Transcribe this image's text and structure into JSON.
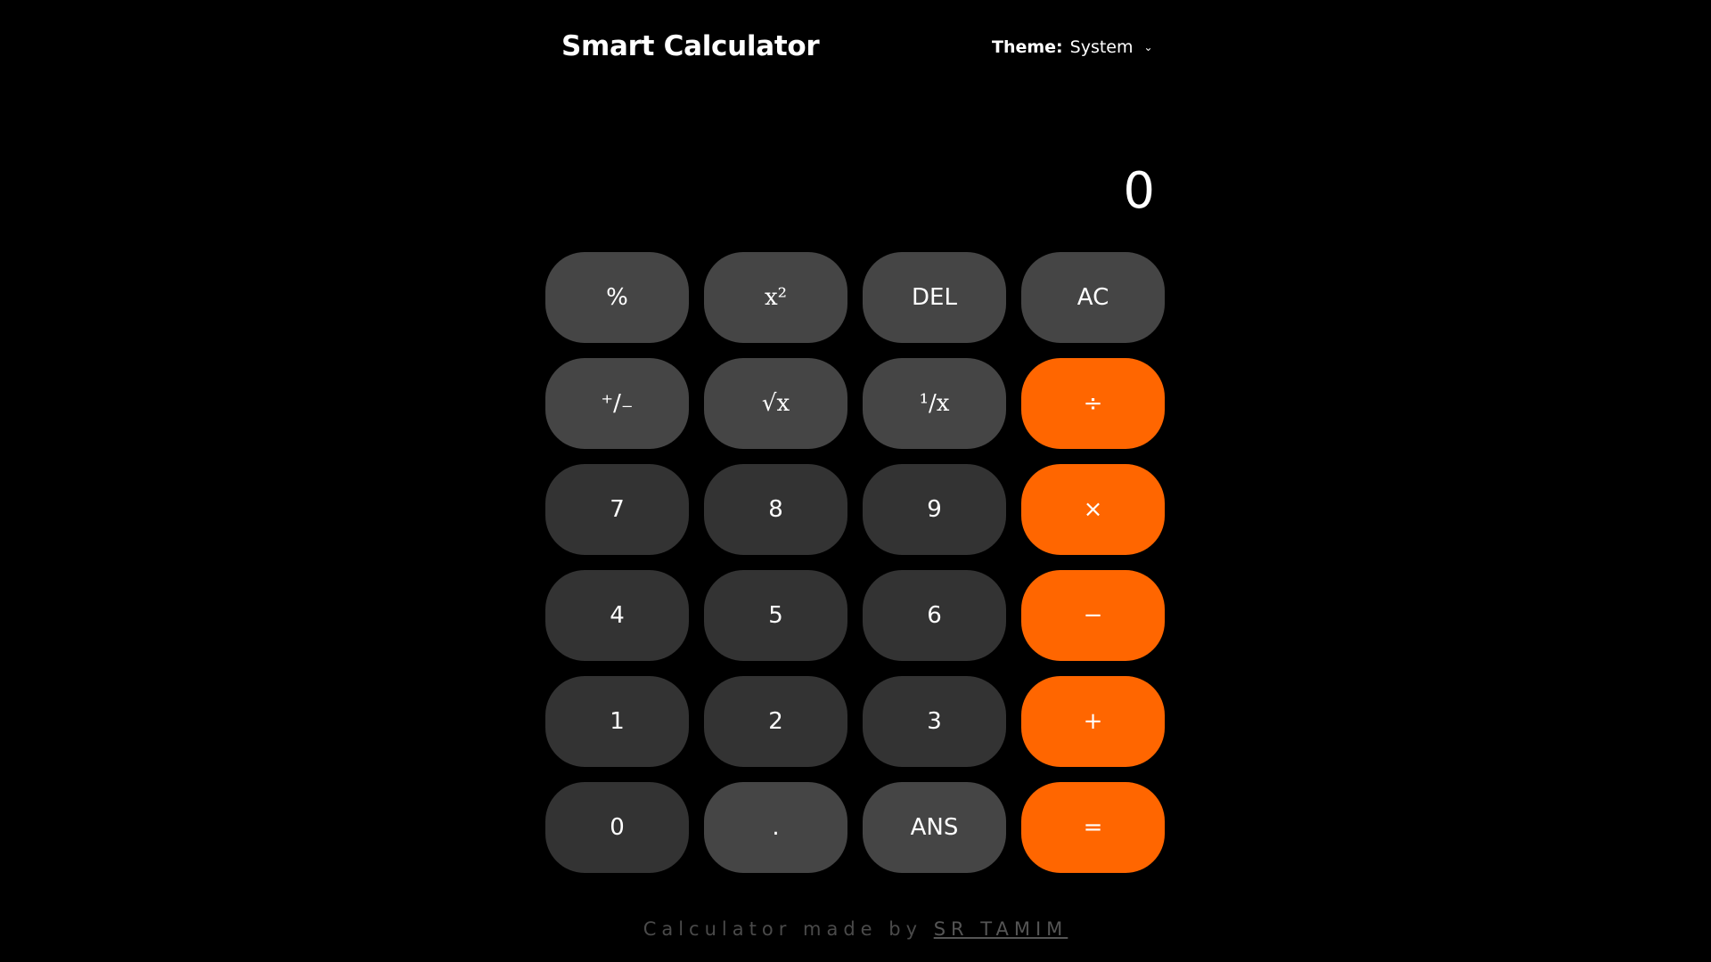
{
  "header": {
    "title": "Smart Calculator",
    "theme_label": "Theme:",
    "theme_value": "System"
  },
  "display": {
    "value": "0"
  },
  "keys": [
    {
      "label": "%",
      "type": "fn",
      "name": "percent"
    },
    {
      "label": "x²",
      "type": "fn",
      "name": "square"
    },
    {
      "label": "DEL",
      "type": "fn",
      "name": "delete"
    },
    {
      "label": "AC",
      "type": "fn",
      "name": "all-clear"
    },
    {
      "label": "⁺/₋",
      "type": "fn",
      "name": "sign-toggle"
    },
    {
      "label": "√x",
      "type": "fn",
      "name": "square-root"
    },
    {
      "label": "¹/x",
      "type": "fn",
      "name": "reciprocal"
    },
    {
      "label": "÷",
      "type": "op",
      "name": "divide"
    },
    {
      "label": "7",
      "type": "num",
      "name": "digit-7"
    },
    {
      "label": "8",
      "type": "num",
      "name": "digit-8"
    },
    {
      "label": "9",
      "type": "num",
      "name": "digit-9"
    },
    {
      "label": "×",
      "type": "op",
      "name": "multiply"
    },
    {
      "label": "4",
      "type": "num",
      "name": "digit-4"
    },
    {
      "label": "5",
      "type": "num",
      "name": "digit-5"
    },
    {
      "label": "6",
      "type": "num",
      "name": "digit-6"
    },
    {
      "label": "−",
      "type": "op",
      "name": "subtract"
    },
    {
      "label": "1",
      "type": "num",
      "name": "digit-1"
    },
    {
      "label": "2",
      "type": "num",
      "name": "digit-2"
    },
    {
      "label": "3",
      "type": "num",
      "name": "digit-3"
    },
    {
      "label": "+",
      "type": "op",
      "name": "add"
    },
    {
      "label": "0",
      "type": "num",
      "name": "digit-0"
    },
    {
      "label": ".",
      "type": "fn",
      "name": "decimal"
    },
    {
      "label": "ANS",
      "type": "fn",
      "name": "answer"
    },
    {
      "label": "=",
      "type": "op",
      "name": "equals"
    }
  ],
  "footer": {
    "text": "Calculator made by",
    "author": "SR TAMIM"
  },
  "colors": {
    "background": "#000000",
    "function_key": "#454545",
    "number_key": "#333333",
    "operator_key": "#ff6600"
  }
}
